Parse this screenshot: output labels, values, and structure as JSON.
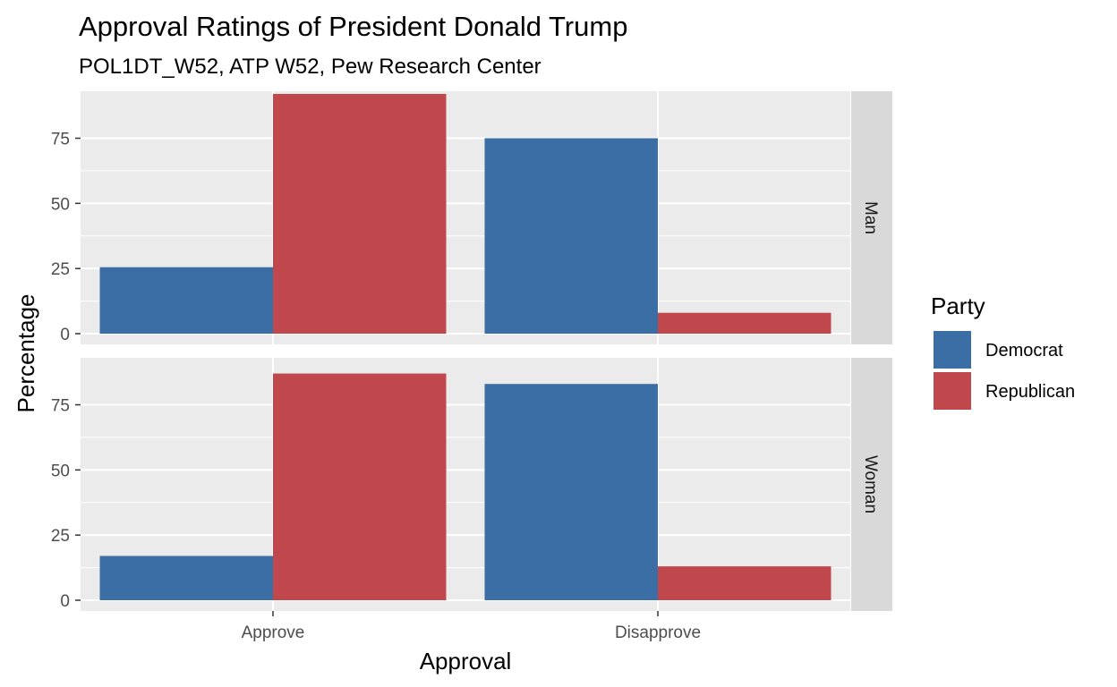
{
  "chart_data": {
    "type": "bar",
    "title": "Approval Ratings of President Donald Trump",
    "subtitle": "POL1DT_W52, ATP W52, Pew Research Center",
    "xlabel": "Approval",
    "ylabel": "Percentage",
    "categories": [
      "Approve",
      "Disapprove"
    ],
    "yticks": [
      0,
      25,
      50,
      75
    ],
    "ylim": [
      0,
      92
    ],
    "grid": true,
    "legend": {
      "title": "Party",
      "position": "right",
      "items": [
        {
          "label": "Democrat",
          "color": "#3a6ea5"
        },
        {
          "label": "Republican",
          "color": "#c0474b"
        }
      ]
    },
    "facets": [
      {
        "label": "Man",
        "series": [
          {
            "name": "Democrat",
            "values": [
              25.5,
              75
            ]
          },
          {
            "name": "Republican",
            "values": [
              92,
              8
            ]
          }
        ]
      },
      {
        "label": "Woman",
        "series": [
          {
            "name": "Democrat",
            "values": [
              17,
              83
            ]
          },
          {
            "name": "Republican",
            "values": [
              87,
              13
            ]
          }
        ]
      }
    ],
    "colors": {
      "panel_bg": "#ebebeb",
      "strip_bg": "#d9d9d9",
      "grid": "#ffffff"
    }
  }
}
